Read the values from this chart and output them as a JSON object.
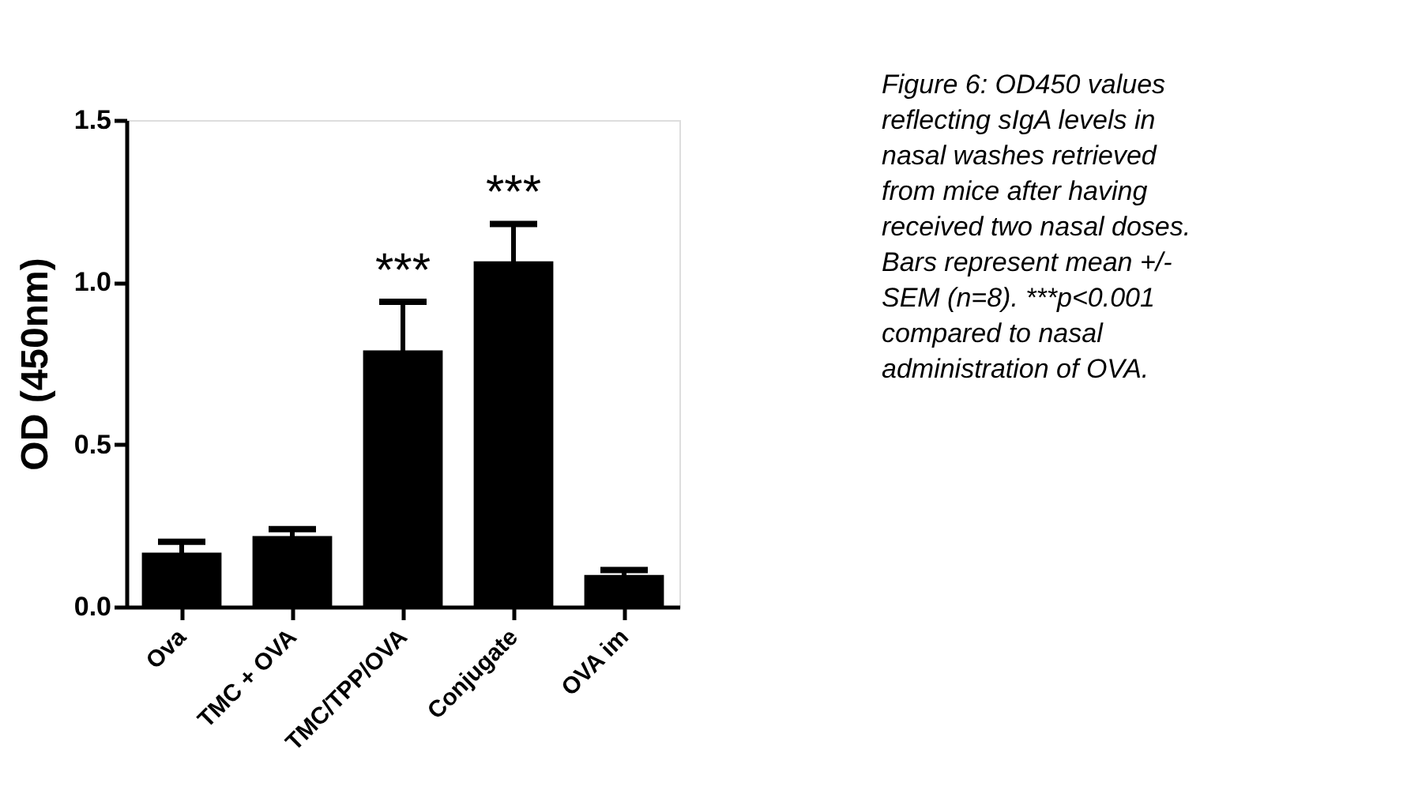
{
  "chart_data": {
    "type": "bar",
    "ylabel": "OD (450nm)",
    "categories": [
      "Ova",
      "TMC + OVA",
      "TMC/TPP/OVA",
      "Conjugate",
      "OVA im"
    ],
    "values": [
      0.167,
      0.218,
      0.79,
      1.065,
      0.098
    ],
    "errors": [
      0.033,
      0.021,
      0.15,
      0.115,
      0.015
    ],
    "color": "#000000",
    "ylim": [
      0,
      1.5
    ],
    "yticks": [
      {
        "value": 0,
        "label": "0.0"
      },
      {
        "value": 0.5,
        "label": "0.5"
      },
      {
        "value": 1,
        "label": "1.0"
      },
      1.5
    ],
    "grid": false,
    "annotations": [
      {
        "text": "***",
        "x": "TMC/TPP/OVA",
        "y": 0.94
      },
      {
        "text": "***",
        "x": "Conjugate",
        "y": 1.18
      },
      "Figure 6: OD450 values reflecting sIgA levels in nasal washes retrieved from mice after having received two nasal doses. Bars represent mean +/- SEM (n=8). ***p<0.001 compared to nasal administration of OVA."
    ]
  }
}
